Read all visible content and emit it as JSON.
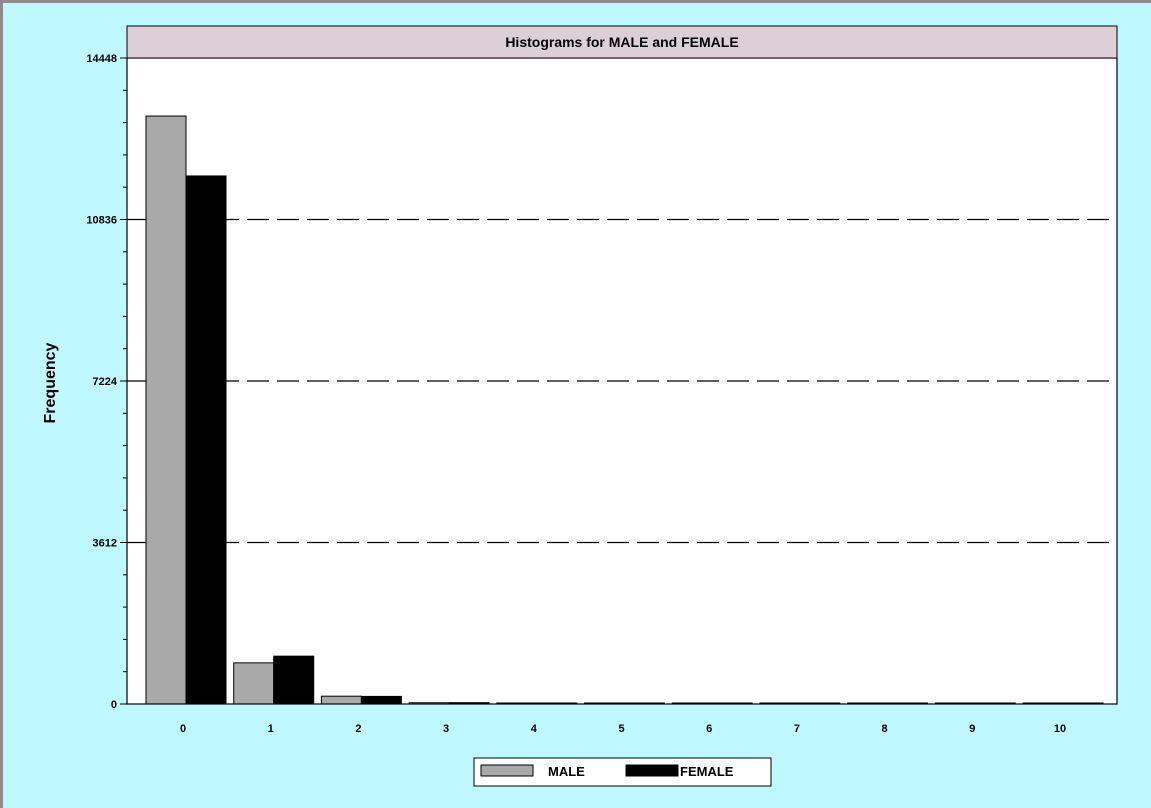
{
  "colors": {
    "background": "#bff9ff",
    "plot_background": "#ffffff",
    "title_band": "#dccfd6",
    "male_bar": "#a9a9a9",
    "female_bar": "#000000",
    "gridline": "#000000"
  },
  "chart_data": {
    "type": "bar",
    "title": "Histograms for MALE and FEMALE",
    "xlabel": "",
    "ylabel": "Frequency",
    "categories": [
      "0",
      "1",
      "2",
      "3",
      "4",
      "5",
      "6",
      "7",
      "8",
      "9",
      "10"
    ],
    "series": [
      {
        "name": "MALE",
        "values": [
          13150,
          920,
          175,
          28,
          18,
          10,
          6,
          5,
          2,
          4,
          3
        ]
      },
      {
        "name": "FEMALE",
        "values": [
          11810,
          1070,
          170,
          30,
          20,
          12,
          8,
          6,
          3,
          5,
          4
        ]
      }
    ],
    "yticks": [
      "0",
      "3612",
      "7224",
      "10836",
      "14448"
    ],
    "ylim": [
      0,
      14448
    ],
    "grid": "horizontal dashed",
    "legend": "bottom-center"
  }
}
